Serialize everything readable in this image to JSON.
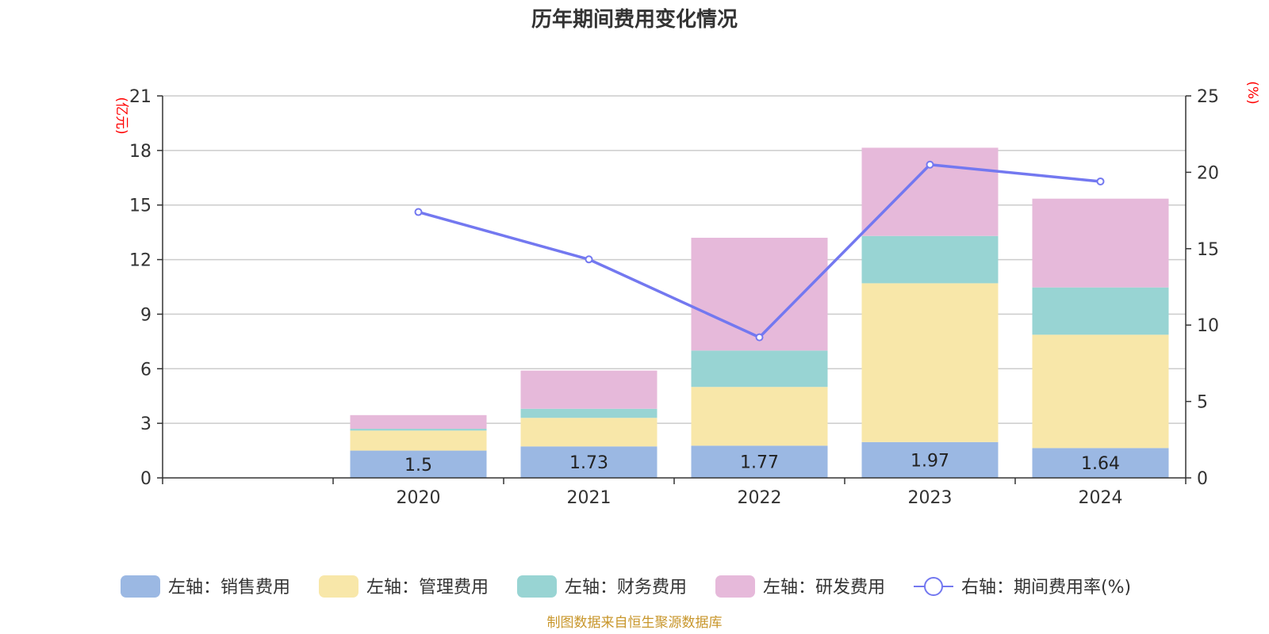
{
  "chart_data": {
    "type": "bar",
    "stacked": true,
    "title": "历年期间费用变化情况",
    "categories": [
      "2020",
      "2021",
      "2022",
      "2023",
      "2024"
    ],
    "x_axis_slots": 6,
    "left_axis": {
      "unit_label": "(亿元)",
      "ylim": [
        0,
        21
      ],
      "ticks": [
        0,
        3,
        6,
        9,
        12,
        15,
        18,
        21
      ]
    },
    "right_axis": {
      "unit_label": "(%)",
      "ylim": [
        0,
        25
      ],
      "ticks": [
        0,
        5,
        10,
        15,
        20,
        25
      ]
    },
    "series": [
      {
        "name": "左轴：销售费用",
        "axis": "left",
        "kind": "bar",
        "color": "#9bb8e3",
        "values": [
          1.5,
          1.73,
          1.77,
          1.97,
          1.64
        ],
        "labels": [
          "1.5",
          "1.73",
          "1.77",
          "1.97",
          "1.64"
        ]
      },
      {
        "name": "左轴：管理费用",
        "axis": "left",
        "kind": "bar",
        "color": "#f8e7a9",
        "values": [
          1.1,
          1.57,
          3.23,
          8.73,
          6.23
        ]
      },
      {
        "name": "左轴：财务费用",
        "axis": "left",
        "kind": "bar",
        "color": "#98d4d3",
        "values": [
          0.1,
          0.5,
          2.0,
          2.6,
          2.6
        ]
      },
      {
        "name": "左轴：研发费用",
        "axis": "left",
        "kind": "bar",
        "color": "#e6b9da",
        "values": [
          0.75,
          2.1,
          6.2,
          4.85,
          4.88
        ]
      },
      {
        "name": "右轴：期间费用率(%)",
        "axis": "right",
        "kind": "line",
        "color": "#7378f0",
        "values": [
          17.4,
          14.3,
          9.2,
          20.5,
          19.4
        ]
      }
    ],
    "grid": true,
    "legend_position": "bottom"
  },
  "footer": {
    "source": "制图数据来自恒生聚源数据库"
  }
}
